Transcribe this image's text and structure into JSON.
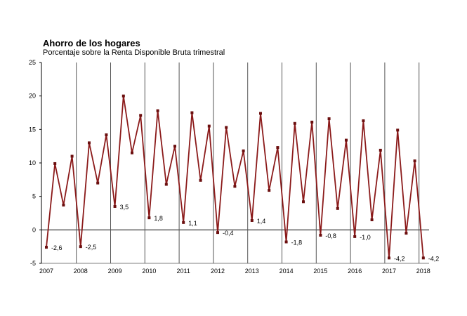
{
  "chart_data": {
    "type": "line",
    "title": "Ahorro de los hogares",
    "subtitle": "Porcentaje sobre la Renta Disponible Bruta trimestral",
    "ylim": [
      -5,
      25
    ],
    "yticks": [
      "-5",
      "0",
      "5",
      "10",
      "15",
      "20",
      "25"
    ],
    "years": [
      "2007",
      "2008",
      "2009",
      "2010",
      "2011",
      "2012",
      "2013",
      "2014",
      "2015",
      "2016",
      "2017",
      "2018"
    ],
    "x": [
      "2007 T1",
      "2007 T2",
      "2007 T3",
      "2007 T4",
      "2008 T1",
      "2008 T2",
      "2008 T3",
      "2008 T4",
      "2009 T1",
      "2009 T2",
      "2009 T3",
      "2009 T4",
      "2010 T1",
      "2010 T2",
      "2010 T3",
      "2010 T4",
      "2011 T1",
      "2011 T2",
      "2011 T3",
      "2011 T4",
      "2012 T1",
      "2012 T2",
      "2012 T3",
      "2012 T4",
      "2013 T1",
      "2013 T2",
      "2013 T3",
      "2013 T4",
      "2014 T1",
      "2014 T2",
      "2014 T3",
      "2014 T4",
      "2015 T1",
      "2015 T2",
      "2015 T3",
      "2015 T4",
      "2016 T1",
      "2016 T2",
      "2016 T3",
      "2016 T4",
      "2017 T1",
      "2017 T2",
      "2017 T3",
      "2017 T4",
      "2018 T1"
    ],
    "series": [
      {
        "color": "#8b1a1a",
        "values": [
          -2.6,
          9.9,
          3.7,
          11.0,
          -2.5,
          13.0,
          7.0,
          14.2,
          3.5,
          20.0,
          11.5,
          17.1,
          1.8,
          17.8,
          6.8,
          12.5,
          1.1,
          17.5,
          7.4,
          15.5,
          -0.4,
          15.3,
          6.5,
          11.8,
          1.4,
          17.4,
          5.9,
          12.3,
          -1.8,
          15.9,
          4.2,
          16.1,
          -0.8,
          16.6,
          3.2,
          13.4,
          -1.0,
          16.3,
          1.5,
          11.9,
          -4.2,
          14.9,
          -0.5,
          10.3,
          -4.2
        ]
      }
    ],
    "annotations": [
      {
        "index": 0,
        "text": "-2,6"
      },
      {
        "index": 4,
        "text": "-2,5"
      },
      {
        "index": 8,
        "text": "3,5"
      },
      {
        "index": 12,
        "text": "1,8"
      },
      {
        "index": 16,
        "text": "1,1"
      },
      {
        "index": 20,
        "text": "-0,4"
      },
      {
        "index": 24,
        "text": "1,4"
      },
      {
        "index": 28,
        "text": "-1,8"
      },
      {
        "index": 32,
        "text": "-0,8"
      },
      {
        "index": 36,
        "text": "-1,0"
      },
      {
        "index": 40,
        "text": "-4,2"
      },
      {
        "index": 44,
        "text": "-4,2"
      }
    ],
    "grid": "vertical separators between years",
    "legend": "none"
  }
}
